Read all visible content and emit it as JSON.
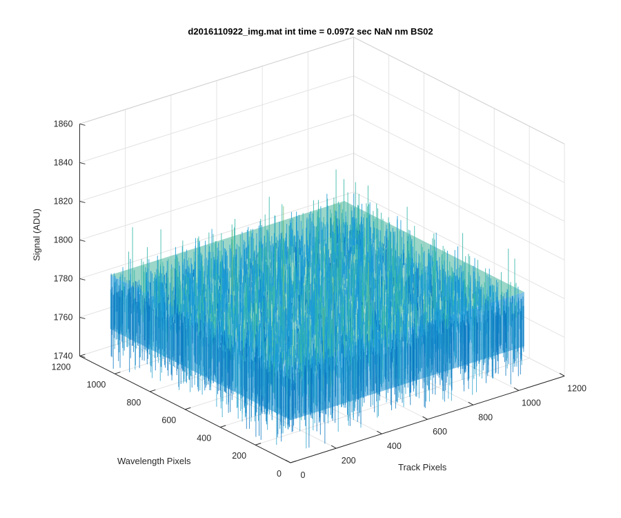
{
  "chart_data": {
    "type": "surface",
    "title": "d2016110922_img.mat int time = 0.0972 sec  NaN nm BS02",
    "xlabel": "Track Pixels",
    "ylabel": "Wavelength Pixels",
    "zlabel": "Signal (ADU)",
    "x_ticks": [
      "0",
      "200",
      "400",
      "600",
      "800",
      "1000",
      "1200"
    ],
    "y_ticks": [
      "0",
      "200",
      "400",
      "600",
      "800",
      "1000",
      "1200"
    ],
    "z_ticks": [
      "1740",
      "1760",
      "1780",
      "1800",
      "1820",
      "1840",
      "1860"
    ],
    "xlim": [
      0,
      1200
    ],
    "ylim": [
      0,
      1200
    ],
    "zlim": [
      1740,
      1860
    ],
    "x_extent": [
      0,
      1024
    ],
    "y_extent": [
      0,
      1024
    ],
    "z_mean": 1780,
    "z_range": [
      1745,
      1845
    ],
    "colormap": "parula",
    "colors": [
      "#0072bd",
      "#1a9bd6",
      "#35b7a8",
      "#7fc47a",
      "#c7c63a"
    ],
    "grid": true
  }
}
